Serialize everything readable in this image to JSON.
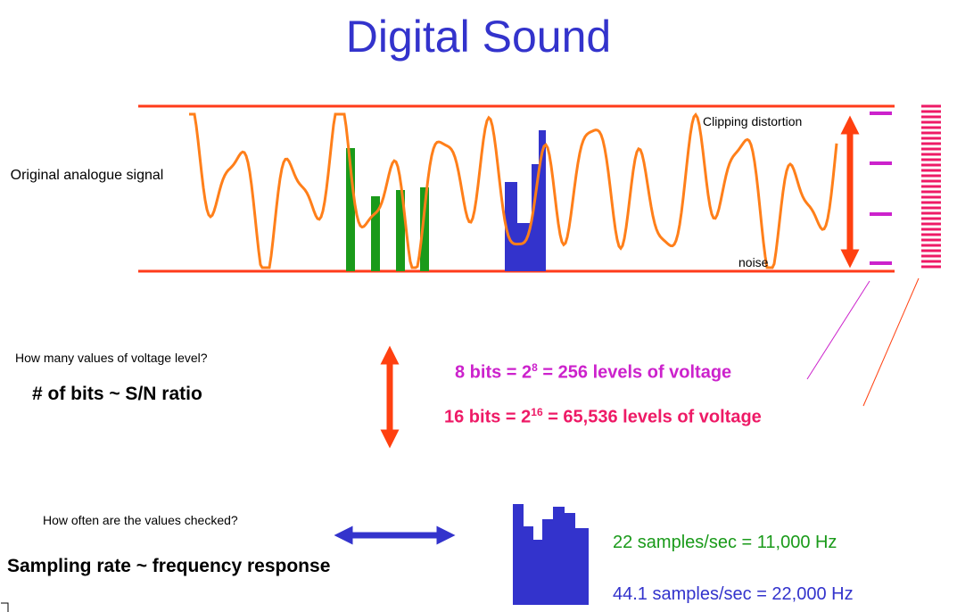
{
  "title": "Digital Sound",
  "signal": {
    "label": "Original analogue signal",
    "clipping": "Clipping distortion",
    "noise": "noise"
  },
  "bits": {
    "question": "How many values of voltage level?",
    "statement": "# of bits ~ S/N ratio",
    "eight": {
      "base": "8 bits = 2",
      "exponent": "8",
      "rest": " = 256 levels of voltage"
    },
    "sixteen": {
      "base": "16 bits = 2",
      "exponent": "16",
      "rest": " = 65,536 levels of voltage"
    }
  },
  "sampling": {
    "question": "How often are the values checked?",
    "statement": "Sampling rate ~ frequency response",
    "low": "22 samples/sec = 11,000 Hz",
    "high": "44.1 samples/sec = 22,000 Hz"
  }
}
